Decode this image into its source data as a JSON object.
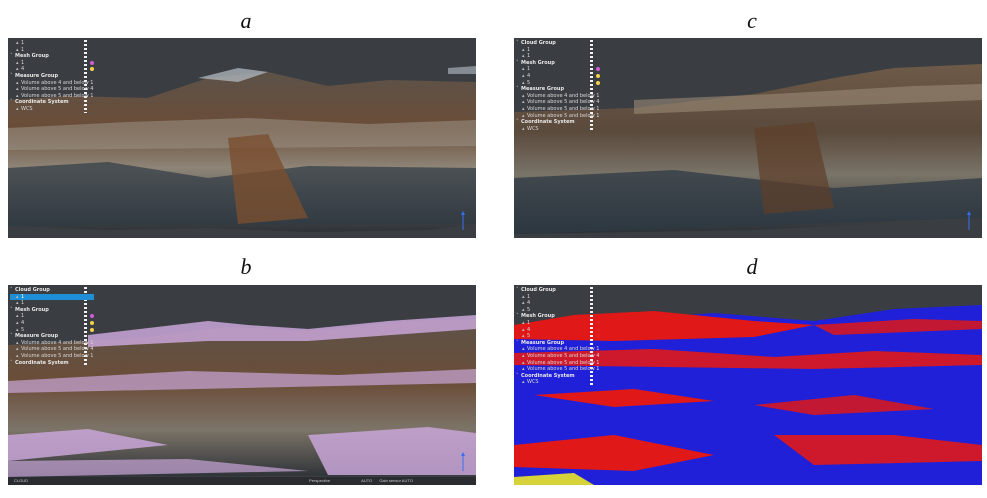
{
  "captions": {
    "a": "a",
    "b": "b",
    "c": "c",
    "d": "d"
  },
  "panels": {
    "a": {
      "tree": [
        {
          "label": "1",
          "level": 1,
          "icon": "cloud-icon"
        },
        {
          "label": "1",
          "level": 1,
          "icon": "cloud-icon"
        },
        {
          "label": "Mesh Group",
          "level": 0,
          "group": true
        },
        {
          "label": "1",
          "level": 1,
          "swatch": "#d05ad8"
        },
        {
          "label": "4",
          "level": 1,
          "swatch": "#f1d24a"
        },
        {
          "label": "Measure Group",
          "level": 0,
          "group": true
        },
        {
          "label": "Volume above 4 and below 1",
          "level": 1
        },
        {
          "label": "Volume above 5 and below 4",
          "level": 1
        },
        {
          "label": "Volume above 5 and below 1",
          "level": 1
        },
        {
          "label": "Coordinate System",
          "level": 0,
          "group": true
        },
        {
          "label": "WCS",
          "level": 1
        }
      ]
    },
    "b": {
      "tree": [
        {
          "label": "Cloud Group",
          "level": 0,
          "group": true
        },
        {
          "label": "1",
          "level": 1,
          "icon": "cloud-icon",
          "selected": true
        },
        {
          "label": "1",
          "level": 1,
          "icon": "cloud-icon"
        },
        {
          "label": "Mesh Group",
          "level": 0,
          "group": true
        },
        {
          "label": "1",
          "level": 1,
          "swatch": "#d05ad8"
        },
        {
          "label": "4",
          "level": 1,
          "swatch": "#f1d24a"
        },
        {
          "label": "5",
          "level": 1,
          "swatch": "#f1d24a"
        },
        {
          "label": "Measure Group",
          "level": 0,
          "group": true
        },
        {
          "label": "Volume above 4 and below 1",
          "level": 1
        },
        {
          "label": "Volume above 5 and below 4",
          "level": 1
        },
        {
          "label": "Volume above 5 and below 1",
          "level": 1
        },
        {
          "label": "Coordinate System",
          "level": 0,
          "group": true
        }
      ],
      "status": [
        "CLOUD",
        "Perspective",
        "AUTO",
        "Gain sensor AUTO"
      ]
    },
    "c": {
      "tree": [
        {
          "label": "Cloud Group",
          "level": 0,
          "group": true
        },
        {
          "label": "1",
          "level": 1,
          "icon": "cloud-icon"
        },
        {
          "label": "1",
          "level": 1,
          "icon": "cloud-icon"
        },
        {
          "label": "Mesh Group",
          "level": 0,
          "group": true
        },
        {
          "label": "1",
          "level": 1,
          "swatch": "#d05ad8"
        },
        {
          "label": "4",
          "level": 1,
          "swatch": "#f1d24a"
        },
        {
          "label": "5",
          "level": 1,
          "swatch": "#f1d24a"
        },
        {
          "label": "Measure Group",
          "level": 0,
          "group": true
        },
        {
          "label": "Volume above 4 and below 1",
          "level": 1
        },
        {
          "label": "Volume above 5 and below 4",
          "level": 1
        },
        {
          "label": "Volume above 5 and below 1",
          "level": 1
        },
        {
          "label": "Volume above 5 and below 1",
          "level": 1
        },
        {
          "label": "Coordinate System",
          "level": 0,
          "group": true
        },
        {
          "label": "WCS",
          "level": 1
        }
      ]
    },
    "d": {
      "tree": [
        {
          "label": "Cloud Group",
          "level": 0,
          "group": true
        },
        {
          "label": "1",
          "level": 1,
          "icon": "cloud-icon"
        },
        {
          "label": "4",
          "level": 1,
          "icon": "cloud-icon"
        },
        {
          "label": "5",
          "level": 1,
          "icon": "cloud-icon"
        },
        {
          "label": "Mesh Group",
          "level": 0,
          "group": true
        },
        {
          "label": "1",
          "level": 1,
          "swatch": "#e02020"
        },
        {
          "label": "4",
          "level": 1,
          "swatch": "#e02020"
        },
        {
          "label": "5",
          "level": 1,
          "swatch": "#e02020"
        },
        {
          "label": "Measure Group",
          "level": 0,
          "group": true
        },
        {
          "label": "Volume above 4 and below 1",
          "level": 1
        },
        {
          "label": "Volume above 5 and below 4",
          "level": 1
        },
        {
          "label": "Volume above 5 and below 1",
          "level": 1
        },
        {
          "label": "Volume above 5 and below 1",
          "level": 1
        },
        {
          "label": "Coordinate System",
          "level": 0,
          "group": true
        },
        {
          "label": "WCS",
          "level": 1
        }
      ]
    }
  },
  "colors": {
    "background": "#3a3d42",
    "selection": "#1e8fd6",
    "rock_dark": "#3b3f44",
    "rock_brown": "#6b4d38",
    "rock_light": "#9a9386",
    "mesh_pink": "#c9a6d8",
    "volume_red": "#e01818",
    "volume_blue": "#2020d8"
  }
}
